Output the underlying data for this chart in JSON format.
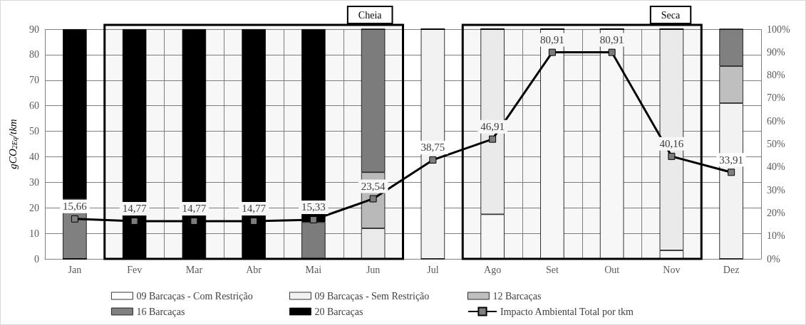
{
  "chart_data": {
    "type": "bar",
    "stacked": true,
    "ylabel": "gCO$_{2Eq}$/tkm",
    "categories": [
      "Jan",
      "Fev",
      "Mar",
      "Abr",
      "Mai",
      "Jun",
      "Jul",
      "Ago",
      "Set",
      "Out",
      "Nov",
      "Dez"
    ],
    "series": [
      {
        "name": "09 Barcaças - Com Restrição",
        "color": "#ffffff",
        "axis": "y2",
        "values": [
          0,
          0,
          0,
          0,
          0,
          0,
          0,
          19.4,
          100,
          100,
          3.7,
          0
        ]
      },
      {
        "name": "09 Barcaças - Sem Restrição",
        "color": "#f2f2f2",
        "axis": "y2",
        "values": [
          0,
          0,
          0,
          0,
          0,
          13.3,
          100,
          80.6,
          0,
          0,
          96.3,
          67.8
        ]
      },
      {
        "name": "12 Barcaças",
        "color": "#bfbfbf",
        "axis": "y2",
        "values": [
          0,
          0,
          0,
          0,
          0,
          24.4,
          0,
          0,
          0,
          0,
          0,
          16.1
        ]
      },
      {
        "name": "16 Barcaças",
        "color": "#808080",
        "axis": "y2",
        "values": [
          26,
          0,
          0,
          0,
          16,
          62.3,
          0,
          0,
          0,
          0,
          0,
          16.1
        ]
      },
      {
        "name": "20 Barcaças",
        "color": "#000000",
        "axis": "y2",
        "values": [
          74,
          100,
          100,
          100,
          84,
          0,
          0,
          0,
          0,
          0,
          0,
          0
        ]
      },
      {
        "name": "Impacto Ambiental Total por tkm",
        "type": "line",
        "color": "#000000",
        "marker": "square",
        "value_labels": [
          "15,66",
          "14,77",
          "14,77",
          "14,77",
          "15,33",
          "23,54",
          "38,75",
          "46,91",
          "80,91",
          "80,91",
          "40,16",
          "33,91"
        ],
        "values": [
          15.66,
          14.77,
          14.77,
          14.77,
          15.33,
          23.54,
          38.75,
          46.91,
          80.91,
          80.91,
          40.16,
          33.91
        ]
      }
    ],
    "ylim": [
      0,
      90
    ],
    "yticks": [
      0,
      10,
      20,
      30,
      40,
      50,
      60,
      70,
      80,
      90
    ],
    "y2lim": [
      0,
      100
    ],
    "y2ticks": [
      {
        "value": 0,
        "label": "0%"
      },
      {
        "value": 10,
        "label": "10%"
      },
      {
        "value": 20,
        "label": "20%"
      },
      {
        "value": 30,
        "label": "30%"
      },
      {
        "value": 40,
        "label": "40%"
      },
      {
        "value": 50,
        "label": "50%"
      },
      {
        "value": 60,
        "label": "60%"
      },
      {
        "value": 70,
        "label": "70%"
      },
      {
        "value": 80,
        "label": "80%"
      },
      {
        "value": 90,
        "label": "90%"
      },
      {
        "value": 100,
        "label": "100%"
      }
    ],
    "bands": [
      {
        "axis": "x",
        "from": "Fev",
        "to": "Jun",
        "label": "Cheia",
        "color": "#000000"
      },
      {
        "axis": "x",
        "from": "Ago",
        "to": "Nov",
        "label": "Seca",
        "color": "#000000"
      }
    ],
    "grid": true,
    "legend": "bottom"
  }
}
